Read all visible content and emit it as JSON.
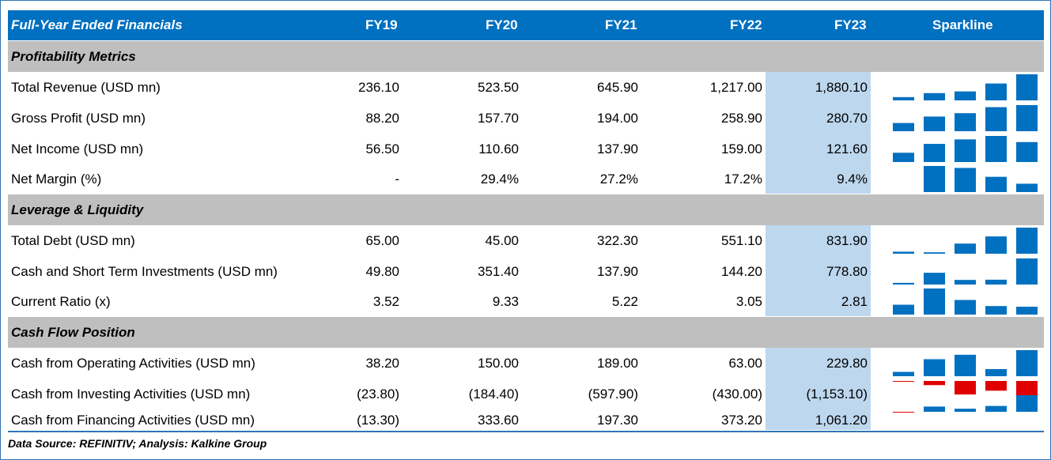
{
  "header": {
    "title": "Full-Year Ended Financials",
    "years": [
      "FY19",
      "FY20",
      "FY21",
      "FY22",
      "FY23"
    ],
    "sparkline": "Sparkline"
  },
  "sections": [
    {
      "title": "Profitability Metrics",
      "rows": [
        {
          "label": "Total Revenue (USD mn)",
          "cells": [
            "236.10",
            "523.50",
            "645.90",
            "1,217.00",
            "1,880.10"
          ]
        },
        {
          "label": "Gross Profit (USD mn)",
          "cells": [
            "88.20",
            "157.70",
            "194.00",
            "258.90",
            "280.70"
          ]
        },
        {
          "label": "Net Income (USD mn)",
          "cells": [
            "56.50",
            "110.60",
            "137.90",
            "159.00",
            "121.60"
          ]
        },
        {
          "label": "Net Margin (%)",
          "cells": [
            "-",
            "29.4%",
            "27.2%",
            "17.2%",
            "9.4%"
          ]
        }
      ]
    },
    {
      "title": "Leverage & Liquidity",
      "rows": [
        {
          "label": "Total Debt (USD mn)",
          "cells": [
            "65.00",
            "45.00",
            "322.30",
            "551.10",
            "831.90"
          ]
        },
        {
          "label": "Cash and Short Term Investments (USD mn)",
          "cells": [
            "49.80",
            "351.40",
            "137.90",
            "144.20",
            "778.80"
          ]
        },
        {
          "label": "Current Ratio (x)",
          "cells": [
            "3.52",
            "9.33",
            "5.22",
            "3.05",
            "2.81"
          ]
        }
      ]
    },
    {
      "title": "Cash Flow Position",
      "rows": [
        {
          "label": "Cash from Operating Activities (USD mn)",
          "cells": [
            "38.20",
            "150.00",
            "189.00",
            "63.00",
            "229.80"
          ]
        },
        {
          "label": "Cash from Investing Activities (USD mn)",
          "cells": [
            "(23.80)",
            "(184.40)",
            "(597.90)",
            "(430.00)",
            "(1,153.10)"
          ]
        },
        {
          "label": "Cash from Financing Activities (USD mn)",
          "cells": [
            "(13.30)",
            "333.60",
            "197.30",
            "373.20",
            "1,061.20"
          ]
        }
      ]
    }
  ],
  "footer": {
    "source": "Data Source: REFINITIV; Analysis: Kalkine Group"
  },
  "colors": {
    "header_bg": "#0070c0",
    "section_bg": "#bfbfbf",
    "fy23_highlight": "#bdd7ee",
    "spark_positive": "#0070c0",
    "spark_negative": "#e00000"
  },
  "chart_data": {
    "type": "table",
    "categories": [
      "FY19",
      "FY20",
      "FY21",
      "FY22",
      "FY23"
    ],
    "series": [
      {
        "name": "Total Revenue (USD mn)",
        "values": [
          236.1,
          523.5,
          645.9,
          1217.0,
          1880.1
        ]
      },
      {
        "name": "Gross Profit (USD mn)",
        "values": [
          88.2,
          157.7,
          194.0,
          258.9,
          280.7
        ]
      },
      {
        "name": "Net Income (USD mn)",
        "values": [
          56.5,
          110.6,
          137.9,
          159.0,
          121.6
        ]
      },
      {
        "name": "Net Margin (%)",
        "values": [
          null,
          29.4,
          27.2,
          17.2,
          9.4
        ]
      },
      {
        "name": "Total Debt (USD mn)",
        "values": [
          65.0,
          45.0,
          322.3,
          551.1,
          831.9
        ]
      },
      {
        "name": "Cash and Short Term Investments (USD mn)",
        "values": [
          49.8,
          351.4,
          137.9,
          144.2,
          778.8
        ]
      },
      {
        "name": "Current Ratio (x)",
        "values": [
          3.52,
          9.33,
          5.22,
          3.05,
          2.81
        ]
      },
      {
        "name": "Cash from Operating Activities (USD mn)",
        "values": [
          38.2,
          150.0,
          189.0,
          63.0,
          229.8
        ]
      },
      {
        "name": "Cash from Investing Activities (USD mn)",
        "values": [
          -23.8,
          -184.4,
          -597.9,
          -430.0,
          -1153.1
        ]
      },
      {
        "name": "Cash from Financing Activities (USD mn)",
        "values": [
          -13.3,
          333.6,
          197.3,
          373.2,
          1061.2
        ]
      }
    ]
  }
}
